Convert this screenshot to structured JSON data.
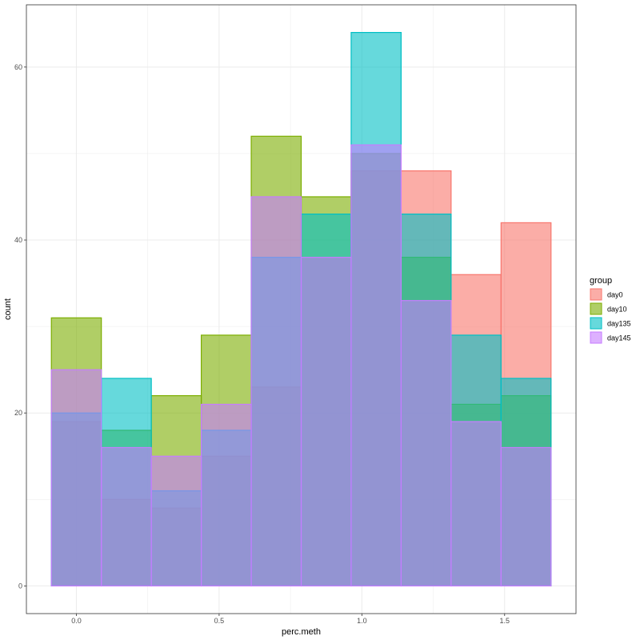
{
  "chart_data": {
    "type": "histogram",
    "title": "",
    "xlabel": "perc.meth",
    "ylabel": "count",
    "xlim": [
      -0.175,
      1.75
    ],
    "ylim": [
      -3.2,
      67.2
    ],
    "x_ticks": [
      0.0,
      0.5,
      1.0,
      1.5
    ],
    "x_tick_labels": [
      "0.0",
      "0.5",
      "1.0",
      "1.5"
    ],
    "y_ticks": [
      0,
      20,
      40,
      60
    ],
    "y_tick_labels": [
      "0",
      "20",
      "40",
      "60"
    ],
    "bin_edges": [
      -0.0875,
      0.0875,
      0.2625,
      0.4375,
      0.6125,
      0.7875,
      0.9625,
      1.1375,
      1.3125,
      1.4875,
      1.6625
    ],
    "grid": true,
    "legend_position": "right",
    "legend_title": "group",
    "series": [
      {
        "name": "day0",
        "fill": "#F8766D",
        "stroke": "#F8766D",
        "values": [
          19,
          10,
          9,
          15,
          23,
          38,
          48,
          48,
          36,
          42
        ]
      },
      {
        "name": "day10",
        "fill": "#7CAE00",
        "stroke": "#7CAE00",
        "values": [
          31,
          18,
          22,
          29,
          52,
          45,
          50,
          38,
          21,
          22
        ]
      },
      {
        "name": "day135",
        "fill": "#00BFC4",
        "stroke": "#00BFC4",
        "values": [
          20,
          24,
          11,
          18,
          38,
          43,
          64,
          43,
          29,
          24
        ]
      },
      {
        "name": "day145",
        "fill": "#C77CFF",
        "stroke": "#C77CFF",
        "values": [
          25,
          16,
          15,
          21,
          45,
          38,
          51,
          33,
          19,
          16
        ]
      }
    ]
  }
}
